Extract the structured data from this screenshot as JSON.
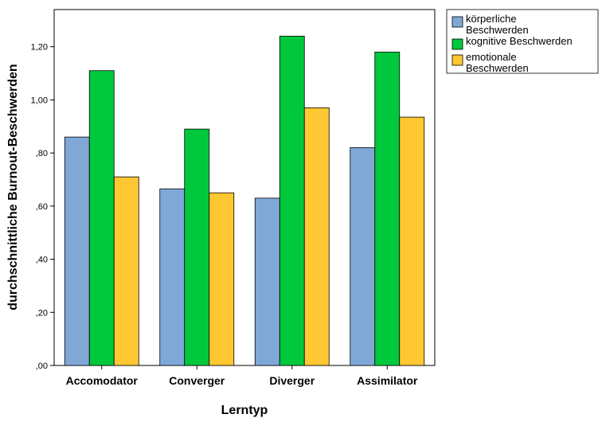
{
  "chart_data": {
    "type": "bar",
    "title": "",
    "xlabel": "Lerntyp",
    "ylabel": "durchschnittliche Burnout-Beschwerden",
    "categories": [
      "Accomodator",
      "Converger",
      "Diverger",
      "Assimilator"
    ],
    "ylim": [
      0,
      1.34
    ],
    "yticks": [
      0,
      0.2,
      0.4,
      0.6,
      0.8,
      1.0,
      1.2
    ],
    "ytick_labels": [
      ",00",
      ",20",
      ",40",
      ",60",
      ",80",
      "1,00",
      "1,20"
    ],
    "grid": false,
    "legend_position": "right",
    "series": [
      {
        "name": "körperliche Beschwerden",
        "legend_lines": [
          "körperliche",
          "Beschwerden"
        ],
        "color": "#7fa8d6",
        "values": [
          0.86,
          0.665,
          0.63,
          0.82
        ]
      },
      {
        "name": "kognitive Beschwerden",
        "legend_lines": [
          "kognitive Beschwerden"
        ],
        "color": "#00c83c",
        "values": [
          1.11,
          0.89,
          1.24,
          1.18
        ]
      },
      {
        "name": "emotionale Beschwerden",
        "legend_lines": [
          "emotionale",
          "Beschwerden"
        ],
        "color": "#ffc832",
        "values": [
          0.71,
          0.65,
          0.97,
          0.935
        ]
      }
    ]
  }
}
